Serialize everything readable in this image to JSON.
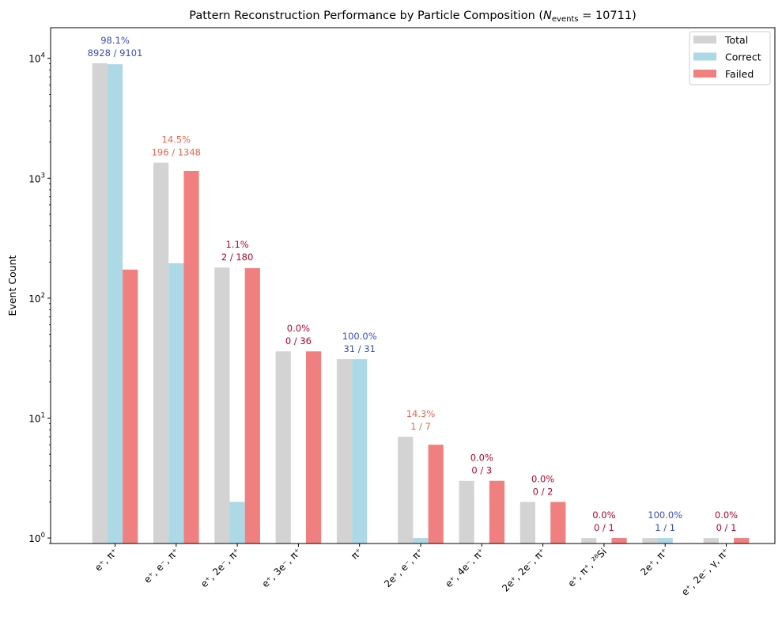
{
  "chart_data": {
    "type": "bar",
    "title_main": "Pattern Reconstruction Performance by Particle Composition (",
    "title_n": "N",
    "title_events": "events",
    "title_eq": " = 10711)",
    "ylabel": "Event Count",
    "yscale": "log",
    "ylim": [
      0.9,
      18000
    ],
    "yticks": [
      {
        "value": 1,
        "base": "10",
        "exp": "0"
      },
      {
        "value": 10,
        "base": "10",
        "exp": "1"
      },
      {
        "value": 100,
        "base": "10",
        "exp": "2"
      },
      {
        "value": 1000,
        "base": "10",
        "exp": "3"
      },
      {
        "value": 10000,
        "base": "10",
        "exp": "4"
      }
    ],
    "categories": [
      "e⁺, π⁺",
      "e⁺, e⁻, π⁺",
      "e⁺, 2e⁻, π⁺",
      "e⁺, 3e⁻, π⁺",
      "π⁺",
      "2e⁺, e⁻, π⁺",
      "e⁺, 4e⁻, π⁺",
      "2e⁺, 2e⁻, π⁺",
      "e⁺, π⁺, ²⁸Si",
      "2e⁺, π⁺",
      "e⁺, 2e⁻, γ, π⁺"
    ],
    "series": [
      {
        "name": "Total",
        "color": "#d3d3d3",
        "values": [
          9101,
          1348,
          180,
          36,
          31,
          7,
          3,
          2,
          1,
          1,
          1
        ]
      },
      {
        "name": "Correct",
        "color": "#add8e6",
        "values": [
          8928,
          196,
          2,
          0,
          31,
          1,
          0,
          0,
          0,
          1,
          0
        ]
      },
      {
        "name": "Failed",
        "color": "#f08080",
        "values": [
          173,
          1152,
          178,
          36,
          0,
          6,
          3,
          2,
          1,
          0,
          1
        ]
      }
    ],
    "annotations": [
      {
        "pct": "98.1%",
        "frac": "8928 / 9101",
        "color": "#3b4cc0"
      },
      {
        "pct": "14.5%",
        "frac": "196 / 1348",
        "color": "#e8664f"
      },
      {
        "pct": "1.1%",
        "frac": "2 / 180",
        "color": "#b40426"
      },
      {
        "pct": "0.0%",
        "frac": "0 / 36",
        "color": "#b40426"
      },
      {
        "pct": "100.0%",
        "frac": "31 / 31",
        "color": "#3b4cc0"
      },
      {
        "pct": "14.3%",
        "frac": "1 / 7",
        "color": "#e8664f"
      },
      {
        "pct": "0.0%",
        "frac": "0 / 3",
        "color": "#b40426"
      },
      {
        "pct": "0.0%",
        "frac": "0 / 2",
        "color": "#b40426"
      },
      {
        "pct": "0.0%",
        "frac": "0 / 1",
        "color": "#b40426"
      },
      {
        "pct": "100.0%",
        "frac": "1 / 1",
        "color": "#3b4cc0"
      },
      {
        "pct": "0.0%",
        "frac": "0 / 1",
        "color": "#b40426"
      }
    ],
    "legend_position": "top-right",
    "grid": false
  }
}
